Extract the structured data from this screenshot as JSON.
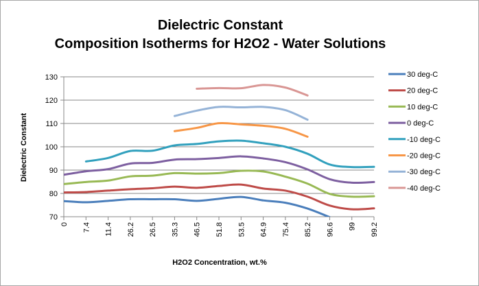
{
  "chart_data": {
    "type": "line",
    "title": "Dielectric Constant",
    "subtitle": "Composition Isotherms for H2O2 - Water Solutions",
    "xlabel": "H2O2 Concentration, wt.%",
    "ylabel": "Dielectric Constant",
    "ylim": [
      70,
      130
    ],
    "yticks": [
      "70",
      "80",
      "90",
      "100",
      "110",
      "120",
      "130"
    ],
    "categories": [
      "0",
      "7.4",
      "11.4",
      "26.2",
      "26.5",
      "35.3",
      "46.5",
      "51.8",
      "53.5",
      "64.9",
      "75.4",
      "85.2",
      "96.6",
      "99",
      "99.2"
    ],
    "grid": true,
    "legend_position": "right",
    "series": [
      {
        "name": "30 deg-C",
        "color": "#4a7ebb",
        "values": [
          76.7,
          76.2,
          76.8,
          77.5,
          77.5,
          77.5,
          76.8,
          77.7,
          78.5,
          77.0,
          76.0,
          73.5,
          69.8,
          null,
          null
        ]
      },
      {
        "name": "20 deg-C",
        "color": "#be4b48",
        "values": [
          80.4,
          80.6,
          81.2,
          81.8,
          82.2,
          82.9,
          82.4,
          83.2,
          83.8,
          82.1,
          81.2,
          78.6,
          74.8,
          73.2,
          73.6
        ]
      },
      {
        "name": "10 deg-C",
        "color": "#98b954",
        "values": [
          84.0,
          84.9,
          85.5,
          87.3,
          87.6,
          88.7,
          88.5,
          88.7,
          89.7,
          89.4,
          87.2,
          84.2,
          79.8,
          78.6,
          78.8
        ]
      },
      {
        "name": "0 deg-C",
        "color": "#7d5fa0",
        "values": [
          88.0,
          89.5,
          90.4,
          92.8,
          93.1,
          94.5,
          94.7,
          95.2,
          95.9,
          95.0,
          93.4,
          90.3,
          86.1,
          84.6,
          84.9
        ]
      },
      {
        "name": "-10 deg-C",
        "color": "#31a0bd",
        "values": [
          null,
          93.7,
          95.2,
          98.2,
          98.3,
          100.6,
          101.2,
          102.3,
          102.6,
          101.5,
          100.0,
          97.0,
          92.4,
          91.3,
          91.4
        ]
      },
      {
        "name": "-20 deg-C",
        "color": "#f79646",
        "values": [
          null,
          null,
          null,
          null,
          null,
          106.7,
          108.1,
          110.1,
          109.6,
          109.0,
          107.7,
          104.3,
          null,
          null,
          null
        ]
      },
      {
        "name": "-30 deg-C",
        "color": "#95b3d7",
        "values": [
          null,
          null,
          null,
          null,
          null,
          113.2,
          115.5,
          117.1,
          116.9,
          117.1,
          115.7,
          111.6,
          null,
          null,
          null
        ]
      },
      {
        "name": "-40 deg-C",
        "color": "#d99694",
        "values": [
          null,
          null,
          null,
          null,
          null,
          null,
          124.9,
          125.2,
          125.1,
          126.5,
          125.4,
          122.0,
          null,
          null,
          null
        ]
      }
    ]
  }
}
